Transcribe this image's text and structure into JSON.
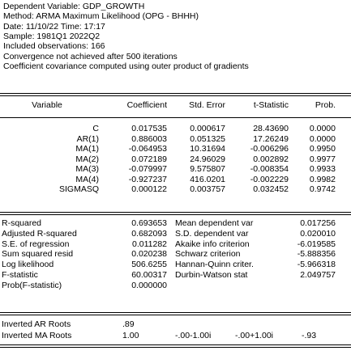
{
  "header": {
    "lines": [
      "Dependent Variable: GDP_GROWTH",
      "Method: ARMA Maximum Likelihood (OPG - BHHH)",
      "Date: 11/10/22   Time: 17:17",
      "Sample: 1981Q1 2022Q2",
      "Included observations: 166",
      "Convergence not achieved after 500 iterations",
      "Coefficient covariance computed using outer product of gradients"
    ]
  },
  "coef_table": {
    "columns": [
      "Variable",
      "Coefficient",
      "Std. Error",
      "t-Statistic",
      "Prob."
    ],
    "rows": [
      [
        "C",
        "0.017535",
        "0.000617",
        "28.43690",
        "0.0000"
      ],
      [
        "AR(1)",
        "0.886003",
        "0.051325",
        "17.26249",
        "0.0000"
      ],
      [
        "MA(1)",
        "-0.064953",
        "10.31694",
        "-0.006296",
        "0.9950"
      ],
      [
        "MA(2)",
        "0.072189",
        "24.96029",
        "0.002892",
        "0.9977"
      ],
      [
        "MA(3)",
        "-0.079997",
        "9.575807",
        "-0.008354",
        "0.9933"
      ],
      [
        "MA(4)",
        "-0.927237",
        "416.0201",
        "-0.002229",
        "0.9982"
      ],
      [
        "SIGMASQ",
        "0.000122",
        "0.003757",
        "0.032452",
        "0.9742"
      ]
    ]
  },
  "stats": {
    "rows": [
      [
        "R-squared",
        "0.693653",
        "Mean dependent var",
        "0.017256"
      ],
      [
        "Adjusted R-squared",
        "0.682093",
        "S.D. dependent var",
        "0.020010"
      ],
      [
        "S.E. of regression",
        "0.011282",
        "Akaike info criterion",
        "-6.019585"
      ],
      [
        "Sum squared resid",
        "0.020238",
        "Schwarz criterion",
        "-5.888356"
      ],
      [
        "Log likelihood",
        "506.6255",
        "Hannan-Quinn criter.",
        "-5.966318"
      ],
      [
        "F-statistic",
        "60.00317",
        "Durbin-Watson stat",
        "2.049757"
      ],
      [
        "Prob(F-statistic)",
        "0.000000",
        "",
        ""
      ]
    ]
  },
  "roots": {
    "ar": {
      "label": "Inverted AR Roots",
      "values": [
        ".89"
      ]
    },
    "ma": {
      "label": "Inverted MA Roots",
      "values": [
        "1.00",
        "-.00-1.00i",
        "-.00+1.00i",
        "-.93"
      ]
    }
  }
}
